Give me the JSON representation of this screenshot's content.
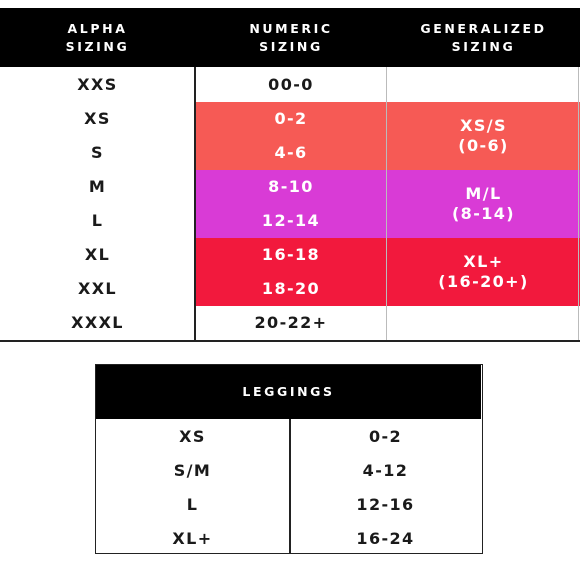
{
  "size_chart": {
    "headers": {
      "alpha": "ALPHA\nSIZING",
      "numeric": "NUMERIC\nSIZING",
      "generalized": "GENERALIZED\nSIZING"
    },
    "rows": [
      {
        "alpha": "XXS",
        "numeric": "00-0"
      },
      {
        "alpha": "XS",
        "numeric": "0-2"
      },
      {
        "alpha": "S",
        "numeric": "4-6"
      },
      {
        "alpha": "M",
        "numeric": "8-10"
      },
      {
        "alpha": "L",
        "numeric": "12-14"
      },
      {
        "alpha": "XL",
        "numeric": "16-18"
      },
      {
        "alpha": "XXL",
        "numeric": "18-20"
      },
      {
        "alpha": "XXXL",
        "numeric": "20-22+"
      }
    ],
    "generalized": [
      {
        "label": "XS/S\n(0-6)",
        "color": "#f65a55"
      },
      {
        "label": "M/L\n(8-14)",
        "color": "#d93bd6"
      },
      {
        "label": "XL+\n(16-20+)",
        "color": "#f2193d"
      }
    ]
  },
  "leggings_chart": {
    "header": "LEGGINGS",
    "rows": [
      {
        "size": "XS",
        "range": "0-2"
      },
      {
        "size": "S/M",
        "range": "4-12"
      },
      {
        "size": "L",
        "range": "12-16"
      },
      {
        "size": "XL+",
        "range": "16-24"
      }
    ]
  }
}
